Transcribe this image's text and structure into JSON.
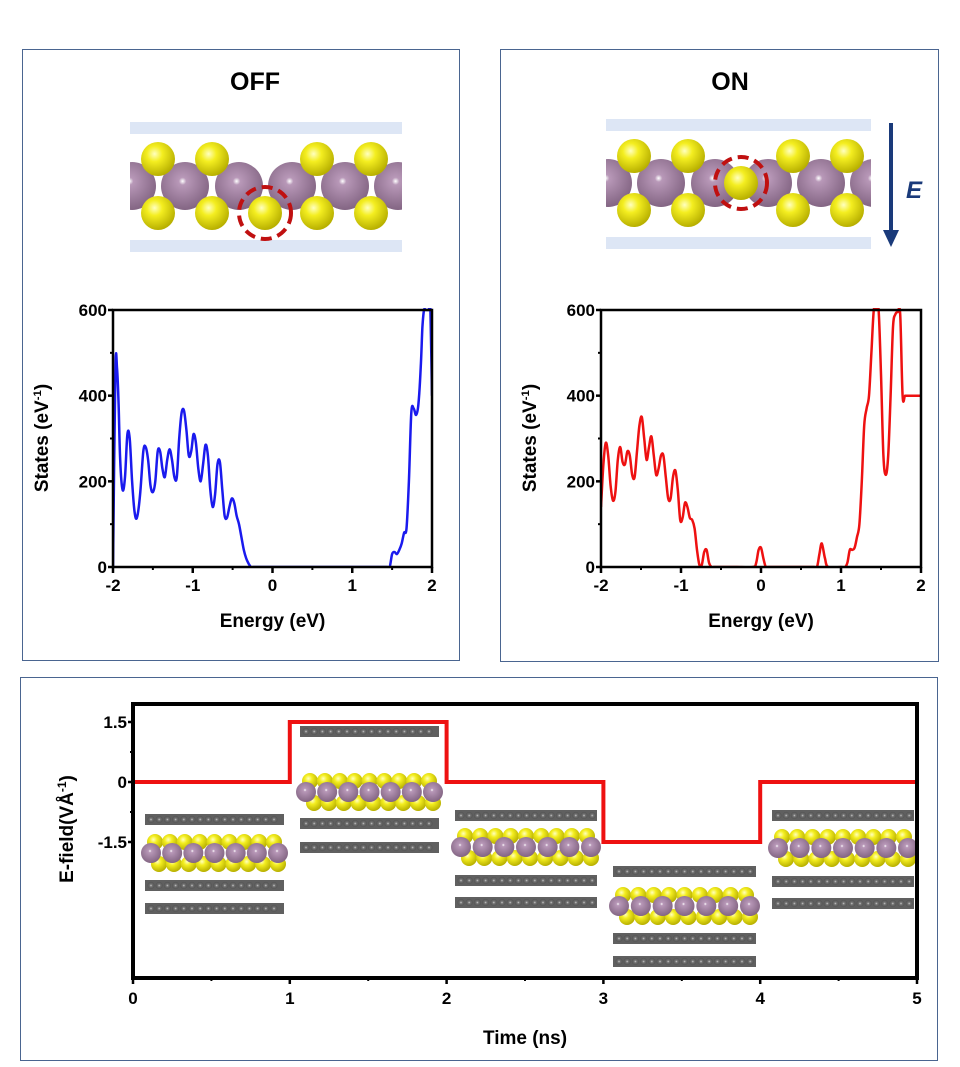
{
  "panels": {
    "off": {
      "title": "OFF",
      "highlight_position": "bottom"
    },
    "on": {
      "title": "ON",
      "field_label": "E",
      "highlight_position": "center"
    }
  },
  "colors": {
    "panel_border": "#4a6590",
    "off_curve": "#1a1aee",
    "on_curve": "#ee1111",
    "efield_curve": "#ee1111",
    "mo_atom": "#9a7a9a",
    "s_atom": "#e8e010",
    "electrode": "#dde6f5",
    "graphene": "#606060",
    "highlight": "#c01010",
    "arrow": "#1a3a7a"
  },
  "chart_data": [
    {
      "type": "line",
      "name": "OFF density of states",
      "xlabel": "Energy (eV)",
      "ylabel": "States (eV",
      "ylabel_sup": "-1",
      "ylabel_close": ")",
      "xlim": [
        -2,
        2
      ],
      "ylim": [
        0,
        600
      ],
      "xticks": [
        "-2",
        "-1",
        "0",
        "1",
        "2"
      ],
      "yticks": [
        "0",
        "200",
        "400",
        "600"
      ],
      "x": [
        -2.0,
        -1.97,
        -1.95,
        -1.93,
        -1.91,
        -1.88,
        -1.85,
        -1.82,
        -1.79,
        -1.76,
        -1.73,
        -1.7,
        -1.66,
        -1.62,
        -1.59,
        -1.56,
        -1.53,
        -1.5,
        -1.47,
        -1.44,
        -1.41,
        -1.38,
        -1.35,
        -1.32,
        -1.29,
        -1.26,
        -1.23,
        -1.2,
        -1.17,
        -1.14,
        -1.11,
        -1.08,
        -1.05,
        -1.02,
        -0.99,
        -0.96,
        -0.93,
        -0.9,
        -0.87,
        -0.84,
        -0.81,
        -0.78,
        -0.75,
        -0.72,
        -0.69,
        -0.66,
        -0.63,
        -0.6,
        -0.57,
        -0.54,
        -0.51,
        -0.48,
        -0.45,
        -0.42,
        -0.39,
        -0.36,
        -0.33,
        -0.3,
        -0.27,
        -0.24,
        -0.21,
        -0.18,
        -0.15,
        -0.1,
        0.0,
        0.5,
        0.85,
        0.88,
        0.91,
        0.94,
        0.97,
        1.0,
        1.03,
        1.06,
        1.2,
        1.35,
        1.38,
        1.41,
        1.44,
        1.47,
        1.5,
        1.53,
        1.56,
        1.59,
        1.62,
        1.65,
        1.68,
        1.71,
        1.74,
        1.77,
        1.8,
        1.83,
        1.86,
        1.88,
        1.9,
        1.92,
        1.94,
        1.96,
        1.98,
        2.0
      ],
      "y": [
        0,
        460,
        465,
        380,
        250,
        180,
        210,
        310,
        300,
        200,
        130,
        115,
        170,
        270,
        280,
        250,
        190,
        175,
        200,
        270,
        270,
        230,
        210,
        250,
        275,
        250,
        210,
        210,
        300,
        360,
        365,
        320,
        260,
        270,
        310,
        290,
        230,
        200,
        240,
        285,
        260,
        180,
        140,
        170,
        240,
        245,
        180,
        120,
        115,
        140,
        160,
        150,
        120,
        100,
        70,
        40,
        20,
        8,
        0,
        0,
        0,
        0,
        0,
        0,
        0,
        0,
        0,
        0,
        0,
        0,
        0,
        0,
        0,
        0,
        0,
        0,
        0,
        0,
        0,
        0,
        30,
        35,
        30,
        40,
        55,
        80,
        90,
        200,
        360,
        370,
        355,
        380,
        470,
        560,
        600,
        600,
        600,
        600,
        600,
        400
      ]
    },
    {
      "type": "line",
      "name": "ON density of states",
      "xlabel": "Energy (eV)",
      "ylabel": "States (eV",
      "ylabel_sup": "-1",
      "ylabel_close": ")",
      "xlim": [
        -2,
        2
      ],
      "ylim": [
        0,
        600
      ],
      "xticks": [
        "-2",
        "-1",
        "0",
        "1",
        "2"
      ],
      "yticks": [
        "0",
        "200",
        "400",
        "600"
      ],
      "x": [
        -2.0,
        -1.97,
        -1.94,
        -1.91,
        -1.88,
        -1.85,
        -1.82,
        -1.79,
        -1.76,
        -1.73,
        -1.7,
        -1.67,
        -1.64,
        -1.61,
        -1.58,
        -1.55,
        -1.52,
        -1.49,
        -1.46,
        -1.43,
        -1.4,
        -1.37,
        -1.34,
        -1.31,
        -1.28,
        -1.25,
        -1.22,
        -1.19,
        -1.16,
        -1.13,
        -1.1,
        -1.07,
        -1.04,
        -1.01,
        -0.98,
        -0.95,
        -0.92,
        -0.89,
        -0.86,
        -0.83,
        -0.8,
        -0.77,
        -0.74,
        -0.71,
        -0.68,
        -0.65,
        -0.62,
        -0.59,
        -0.56,
        -0.53,
        -0.5,
        -0.47,
        -0.44,
        -0.41,
        -0.3,
        -0.1,
        -0.06,
        -0.03,
        0.0,
        0.03,
        0.06,
        0.1,
        0.5,
        0.66,
        0.7,
        0.73,
        0.76,
        0.8,
        0.84,
        1.0,
        1.05,
        1.08,
        1.11,
        1.14,
        1.17,
        1.2,
        1.23,
        1.26,
        1.29,
        1.32,
        1.35,
        1.38,
        1.41,
        1.44,
        1.47,
        1.5,
        1.53,
        1.56,
        1.59,
        1.62,
        1.65,
        1.68,
        1.71,
        1.74,
        1.77,
        1.8,
        1.83,
        1.86,
        1.89,
        1.92,
        1.95,
        1.98,
        2.0
      ],
      "y": [
        140,
        240,
        290,
        260,
        190,
        155,
        175,
        250,
        280,
        245,
        240,
        270,
        260,
        215,
        210,
        270,
        330,
        350,
        300,
        250,
        280,
        305,
        260,
        215,
        230,
        260,
        260,
        210,
        160,
        160,
        210,
        225,
        180,
        110,
        115,
        150,
        140,
        115,
        110,
        90,
        40,
        5,
        5,
        35,
        40,
        10,
        0,
        0,
        0,
        0,
        0,
        0,
        0,
        0,
        0,
        0,
        10,
        40,
        45,
        20,
        0,
        0,
        0,
        0,
        0,
        30,
        55,
        20,
        0,
        0,
        0,
        10,
        40,
        40,
        45,
        70,
        100,
        200,
        330,
        370,
        400,
        500,
        600,
        600,
        600,
        450,
        260,
        215,
        260,
        400,
        560,
        590,
        595,
        590,
        400,
        400,
        400,
        400,
        400,
        400,
        400,
        400,
        400
      ],
      "x_note": "trimmed",
      "y_note": "trimmed"
    },
    {
      "type": "line",
      "name": "E-field vs time",
      "xlabel": "Time (ns)",
      "ylabel": "E-field(VÅ",
      "ylabel_sup": "-1",
      "ylabel_close": ")",
      "xlim": [
        0,
        5
      ],
      "ylim": [
        -4.9,
        1.95
      ],
      "xticks": [
        "0",
        "1",
        "2",
        "3",
        "4",
        "5"
      ],
      "yticks": [
        "1.5",
        "0",
        "-1.5"
      ],
      "ytick_values": [
        1.5,
        0,
        -1.5
      ],
      "x": [
        0,
        1,
        1,
        2,
        2,
        3,
        3,
        4,
        4,
        5
      ],
      "y": [
        0,
        0,
        1.5,
        1.5,
        0,
        0,
        -1.5,
        -1.5,
        0,
        0
      ]
    }
  ]
}
